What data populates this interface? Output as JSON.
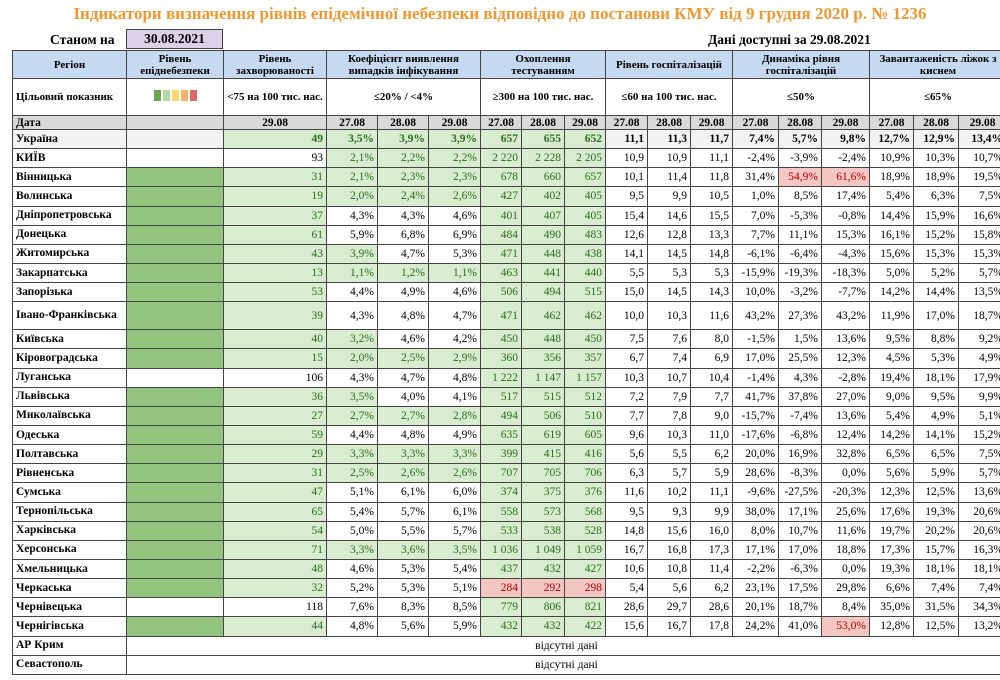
{
  "title": "Індикатори визначення рівнів епідемічної небезпеки відповідно до постанови КМУ від 9 грудня 2020 р. № 1236",
  "as_of_label": "Станом на",
  "as_of_date": "30.08.2021",
  "data_note": "Дані доступні за  29.08.2021",
  "headers": {
    "region": "Регіон",
    "risk_level": "Рівень епіднебезпеки",
    "incidence": "Рівень захворюваності",
    "detection": "Коефіцієнт виявлення випадків інфікування",
    "testing": "Охоплення тестуванням",
    "hosp": "Рівень госпіталізацій",
    "hosp_dyn": "Динаміка рівня госпіталізацій",
    "beds": "Завантаженість ліжок з киснем"
  },
  "targets": {
    "label": "Цільовий показник",
    "incidence": "<75 на 100 тис. нас.",
    "detection": "≤20% / <4%",
    "testing": "≥300 на 100 тис. нас.",
    "hosp": "≤60 на 100 тис. нас.",
    "hosp_dyn": "≤50%",
    "beds": "≤65%"
  },
  "legend_colors": [
    "#6aa84f",
    "#b6d7a8",
    "#ffd966",
    "#f6b26b",
    "#e06666"
  ],
  "date_row": {
    "label": "Дата",
    "incidence": "29.08",
    "d1": "27.08",
    "d2": "28.08",
    "d3": "29.08"
  },
  "colors": {
    "header_bg": "#c5d9f1",
    "indicator_green": "#93c47d",
    "good_bg": "#d8ecd0",
    "bad_bg": "#f4c7c3",
    "title_color": "#f0982e"
  },
  "rows": [
    {
      "name": "Україна",
      "ua": true,
      "ind": false,
      "inc": "49",
      "ci": "g",
      "det": [
        "3,5%",
        "3,9%",
        "3,9%"
      ],
      "dc": [
        "g",
        "g",
        "g"
      ],
      "test": [
        "657",
        "655",
        "652"
      ],
      "tc": [
        "g",
        "g",
        "g"
      ],
      "hosp": [
        "11,1",
        "11,3",
        "11,7"
      ],
      "dyn": [
        "7,4%",
        "5,7%",
        "9,8%"
      ],
      "yc": [
        "",
        "",
        ""
      ],
      "beds": [
        "12,7%",
        "12,9%",
        "13,4%"
      ]
    },
    {
      "name": "КИЇВ",
      "ind": false,
      "inc": "93",
      "ci": "",
      "det": [
        "2,1%",
        "2,2%",
        "2,2%"
      ],
      "dc": [
        "g",
        "g",
        "g"
      ],
      "test": [
        "2 220",
        "2 228",
        "2 205"
      ],
      "tc": [
        "g",
        "g",
        "g"
      ],
      "hosp": [
        "10,9",
        "10,9",
        "11,1"
      ],
      "dyn": [
        "-2,4%",
        "-3,9%",
        "-2,4%"
      ],
      "yc": [
        "",
        "",
        ""
      ],
      "beds": [
        "10,9%",
        "10,3%",
        "10,7%"
      ]
    },
    {
      "name": "Вінницька",
      "ind": true,
      "inc": "31",
      "ci": "g",
      "det": [
        "2,1%",
        "2,3%",
        "2,3%"
      ],
      "dc": [
        "g",
        "g",
        "g"
      ],
      "test": [
        "678",
        "660",
        "657"
      ],
      "tc": [
        "g",
        "g",
        "g"
      ],
      "hosp": [
        "10,1",
        "11,4",
        "11,8"
      ],
      "dyn": [
        "31,4%",
        "54,9%",
        "61,6%"
      ],
      "yc": [
        "",
        "p",
        "p"
      ],
      "beds": [
        "18,9%",
        "18,9%",
        "19,5%"
      ]
    },
    {
      "name": "Волинська",
      "ind": true,
      "inc": "19",
      "ci": "g",
      "det": [
        "2,0%",
        "2,4%",
        "2,6%"
      ],
      "dc": [
        "g",
        "g",
        "g"
      ],
      "test": [
        "427",
        "402",
        "405"
      ],
      "tc": [
        "g",
        "g",
        "g"
      ],
      "hosp": [
        "9,5",
        "9,9",
        "10,5"
      ],
      "dyn": [
        "1,0%",
        "8,5%",
        "17,4%"
      ],
      "yc": [
        "",
        "",
        ""
      ],
      "beds": [
        "5,4%",
        "6,3%",
        "7,5%"
      ]
    },
    {
      "name": "Дніпропетровська",
      "ind": true,
      "inc": "37",
      "ci": "g",
      "det": [
        "4,3%",
        "4,3%",
        "4,6%"
      ],
      "dc": [
        "",
        "",
        ""
      ],
      "test": [
        "401",
        "407",
        "405"
      ],
      "tc": [
        "g",
        "g",
        "g"
      ],
      "hosp": [
        "15,4",
        "14,6",
        "15,5"
      ],
      "dyn": [
        "7,0%",
        "-5,3%",
        "-0,8%"
      ],
      "yc": [
        "",
        "",
        ""
      ],
      "beds": [
        "14,4%",
        "15,9%",
        "16,6%"
      ]
    },
    {
      "name": "Донецька",
      "ind": true,
      "inc": "61",
      "ci": "g",
      "det": [
        "5,9%",
        "6,8%",
        "6,9%"
      ],
      "dc": [
        "",
        "",
        ""
      ],
      "test": [
        "484",
        "490",
        "483"
      ],
      "tc": [
        "g",
        "g",
        "g"
      ],
      "hosp": [
        "12,6",
        "12,8",
        "13,3"
      ],
      "dyn": [
        "7,7%",
        "11,1%",
        "15,3%"
      ],
      "yc": [
        "",
        "",
        ""
      ],
      "beds": [
        "16,1%",
        "15,2%",
        "15,8%"
      ]
    },
    {
      "name": "Житомирська",
      "ind": true,
      "inc": "43",
      "ci": "g",
      "det": [
        "3,9%",
        "4,7%",
        "5,3%"
      ],
      "dc": [
        "g",
        "",
        ""
      ],
      "test": [
        "471",
        "448",
        "438"
      ],
      "tc": [
        "g",
        "g",
        "g"
      ],
      "hosp": [
        "14,1",
        "14,5",
        "14,8"
      ],
      "dyn": [
        "-6,1%",
        "-6,4%",
        "-4,3%"
      ],
      "yc": [
        "",
        "",
        ""
      ],
      "beds": [
        "15,6%",
        "15,3%",
        "15,3%"
      ]
    },
    {
      "name": "Закарпатська",
      "ind": true,
      "inc": "13",
      "ci": "g",
      "det": [
        "1,1%",
        "1,2%",
        "1,1%"
      ],
      "dc": [
        "g",
        "g",
        "g"
      ],
      "test": [
        "463",
        "441",
        "440"
      ],
      "tc": [
        "g",
        "g",
        "g"
      ],
      "hosp": [
        "5,5",
        "5,3",
        "5,3"
      ],
      "dyn": [
        "-15,9%",
        "-19,3%",
        "-18,3%"
      ],
      "yc": [
        "",
        "",
        ""
      ],
      "beds": [
        "5,0%",
        "5,2%",
        "5,7%"
      ]
    },
    {
      "name": "Запорізька",
      "ind": true,
      "inc": "53",
      "ci": "g",
      "det": [
        "4,4%",
        "4,9%",
        "4,6%"
      ],
      "dc": [
        "",
        "",
        ""
      ],
      "test": [
        "506",
        "494",
        "515"
      ],
      "tc": [
        "g",
        "g",
        "g"
      ],
      "hosp": [
        "15,0",
        "14,5",
        "14,3"
      ],
      "dyn": [
        "10,0%",
        "-3,2%",
        "-7,7%"
      ],
      "yc": [
        "",
        "",
        ""
      ],
      "beds": [
        "14,2%",
        "14,4%",
        "13,5%"
      ]
    },
    {
      "name": "Івано-Франківська",
      "ml": true,
      "ind": true,
      "inc": "39",
      "ci": "g",
      "det": [
        "4,3%",
        "4,8%",
        "4,7%"
      ],
      "dc": [
        "",
        "",
        ""
      ],
      "test": [
        "471",
        "462",
        "462"
      ],
      "tc": [
        "g",
        "g",
        "g"
      ],
      "hosp": [
        "10,0",
        "10,3",
        "11,6"
      ],
      "dyn": [
        "43,2%",
        "27,3%",
        "43,2%"
      ],
      "yc": [
        "",
        "",
        ""
      ],
      "beds": [
        "11,9%",
        "17,0%",
        "18,7%"
      ]
    },
    {
      "name": "Київська",
      "ind": true,
      "inc": "40",
      "ci": "g",
      "det": [
        "3,2%",
        "4,6%",
        "4,2%"
      ],
      "dc": [
        "g",
        "",
        ""
      ],
      "test": [
        "450",
        "448",
        "450"
      ],
      "tc": [
        "g",
        "g",
        "g"
      ],
      "hosp": [
        "7,5",
        "7,6",
        "8,0"
      ],
      "dyn": [
        "-1,5%",
        "1,5%",
        "13,6%"
      ],
      "yc": [
        "",
        "",
        ""
      ],
      "beds": [
        "9,5%",
        "8,8%",
        "9,2%"
      ]
    },
    {
      "name": "Кіровоградська",
      "ind": true,
      "inc": "15",
      "ci": "g",
      "det": [
        "2,0%",
        "2,5%",
        "2,9%"
      ],
      "dc": [
        "g",
        "g",
        "g"
      ],
      "test": [
        "360",
        "356",
        "357"
      ],
      "tc": [
        "g",
        "g",
        "g"
      ],
      "hosp": [
        "6,7",
        "7,4",
        "6,9"
      ],
      "dyn": [
        "17,0%",
        "25,5%",
        "12,3%"
      ],
      "yc": [
        "",
        "",
        ""
      ],
      "beds": [
        "4,5%",
        "5,3%",
        "4,9%"
      ]
    },
    {
      "name": "Луганська",
      "ind": false,
      "inc": "106",
      "ci": "",
      "det": [
        "4,3%",
        "4,7%",
        "4,8%"
      ],
      "dc": [
        "",
        "",
        ""
      ],
      "test": [
        "1 222",
        "1 147",
        "1 157"
      ],
      "tc": [
        "g",
        "g",
        "g"
      ],
      "hosp": [
        "10,3",
        "10,7",
        "10,4"
      ],
      "dyn": [
        "-1,4%",
        "4,3%",
        "-2,8%"
      ],
      "yc": [
        "",
        "",
        ""
      ],
      "beds": [
        "19,4%",
        "18,1%",
        "17,9%"
      ]
    },
    {
      "name": "Львівська",
      "ind": true,
      "inc": "36",
      "ci": "g",
      "det": [
        "3,5%",
        "4,0%",
        "4,1%"
      ],
      "dc": [
        "g",
        "",
        ""
      ],
      "test": [
        "517",
        "515",
        "512"
      ],
      "tc": [
        "g",
        "g",
        "g"
      ],
      "hosp": [
        "7,2",
        "7,9",
        "7,7"
      ],
      "dyn": [
        "41,7%",
        "37,8%",
        "27,0%"
      ],
      "yc": [
        "",
        "",
        ""
      ],
      "beds": [
        "9,0%",
        "9,5%",
        "9,9%"
      ]
    },
    {
      "name": "Миколаївська",
      "ind": true,
      "inc": "27",
      "ci": "g",
      "det": [
        "2,7%",
        "2,7%",
        "2,8%"
      ],
      "dc": [
        "g",
        "g",
        "g"
      ],
      "test": [
        "494",
        "506",
        "510"
      ],
      "tc": [
        "g",
        "g",
        "g"
      ],
      "hosp": [
        "7,7",
        "7,8",
        "9,0"
      ],
      "dyn": [
        "-15,7%",
        "-7,4%",
        "13,6%"
      ],
      "yc": [
        "",
        "",
        ""
      ],
      "beds": [
        "5,4%",
        "4,9%",
        "5,1%"
      ]
    },
    {
      "name": "Одеська",
      "ind": true,
      "inc": "59",
      "ci": "g",
      "det": [
        "4,4%",
        "4,8%",
        "4,9%"
      ],
      "dc": [
        "",
        "",
        ""
      ],
      "test": [
        "635",
        "619",
        "605"
      ],
      "tc": [
        "g",
        "g",
        "g"
      ],
      "hosp": [
        "9,6",
        "10,3",
        "11,0"
      ],
      "dyn": [
        "-17,6%",
        "-6,8%",
        "12,4%"
      ],
      "yc": [
        "",
        "",
        ""
      ],
      "beds": [
        "14,2%",
        "14,1%",
        "15,2%"
      ]
    },
    {
      "name": "Полтавська",
      "ind": true,
      "inc": "29",
      "ci": "g",
      "det": [
        "3,3%",
        "3,3%",
        "3,3%"
      ],
      "dc": [
        "g",
        "g",
        "g"
      ],
      "test": [
        "399",
        "415",
        "416"
      ],
      "tc": [
        "g",
        "g",
        "g"
      ],
      "hosp": [
        "5,6",
        "5,5",
        "6,2"
      ],
      "dyn": [
        "20,0%",
        "16,9%",
        "32,8%"
      ],
      "yc": [
        "",
        "",
        ""
      ],
      "beds": [
        "6,5%",
        "6,5%",
        "7,5%"
      ]
    },
    {
      "name": "Рівненська",
      "ind": true,
      "inc": "31",
      "ci": "g",
      "det": [
        "2,5%",
        "2,6%",
        "2,6%"
      ],
      "dc": [
        "g",
        "g",
        "g"
      ],
      "test": [
        "707",
        "705",
        "706"
      ],
      "tc": [
        "g",
        "g",
        "g"
      ],
      "hosp": [
        "6,3",
        "5,7",
        "5,9"
      ],
      "dyn": [
        "28,6%",
        "-8,3%",
        "0,0%"
      ],
      "yc": [
        "",
        "",
        ""
      ],
      "beds": [
        "5,6%",
        "5,9%",
        "5,7%"
      ]
    },
    {
      "name": "Сумська",
      "ind": true,
      "inc": "47",
      "ci": "g",
      "det": [
        "5,1%",
        "6,1%",
        "6,0%"
      ],
      "dc": [
        "",
        "",
        ""
      ],
      "test": [
        "374",
        "375",
        "376"
      ],
      "tc": [
        "g",
        "g",
        "g"
      ],
      "hosp": [
        "11,6",
        "10,2",
        "11,1"
      ],
      "dyn": [
        "-9,6%",
        "-27,5%",
        "-20,3%"
      ],
      "yc": [
        "",
        "",
        ""
      ],
      "beds": [
        "12,3%",
        "12,5%",
        "13,6%"
      ]
    },
    {
      "name": "Тернопільська",
      "ind": true,
      "inc": "65",
      "ci": "g",
      "det": [
        "5,4%",
        "5,7%",
        "6,1%"
      ],
      "dc": [
        "",
        "",
        ""
      ],
      "test": [
        "558",
        "573",
        "568"
      ],
      "tc": [
        "g",
        "g",
        "g"
      ],
      "hosp": [
        "9,5",
        "9,3",
        "9,9"
      ],
      "dyn": [
        "38,0%",
        "17,1%",
        "25,6%"
      ],
      "yc": [
        "",
        "",
        ""
      ],
      "beds": [
        "17,6%",
        "19,3%",
        "20,6%"
      ]
    },
    {
      "name": "Харківська",
      "ind": true,
      "inc": "54",
      "ci": "g",
      "det": [
        "5,0%",
        "5,5%",
        "5,7%"
      ],
      "dc": [
        "",
        "",
        ""
      ],
      "test": [
        "533",
        "538",
        "528"
      ],
      "tc": [
        "g",
        "g",
        "g"
      ],
      "hosp": [
        "14,8",
        "15,6",
        "16,0"
      ],
      "dyn": [
        "8,0%",
        "10,7%",
        "11,6%"
      ],
      "yc": [
        "",
        "",
        ""
      ],
      "beds": [
        "19,7%",
        "20,2%",
        "20,6%"
      ]
    },
    {
      "name": "Херсонська",
      "ind": true,
      "inc": "71",
      "ci": "g",
      "det": [
        "3,3%",
        "3,6%",
        "3,5%"
      ],
      "dc": [
        "g",
        "g",
        "g"
      ],
      "test": [
        "1 036",
        "1 049",
        "1 059"
      ],
      "tc": [
        "g",
        "g",
        "g"
      ],
      "hosp": [
        "16,7",
        "16,8",
        "17,3"
      ],
      "dyn": [
        "17,1%",
        "17,0%",
        "18,8%"
      ],
      "yc": [
        "",
        "",
        ""
      ],
      "beds": [
        "17,3%",
        "15,7%",
        "16,3%"
      ]
    },
    {
      "name": "Хмельницька",
      "ind": true,
      "inc": "48",
      "ci": "g",
      "det": [
        "4,6%",
        "5,3%",
        "5,4%"
      ],
      "dc": [
        "",
        "",
        ""
      ],
      "test": [
        "437",
        "432",
        "427"
      ],
      "tc": [
        "g",
        "g",
        "g"
      ],
      "hosp": [
        "10,6",
        "10,8",
        "11,4"
      ],
      "dyn": [
        "-2,2%",
        "-6,3%",
        "0,0%"
      ],
      "yc": [
        "",
        "",
        ""
      ],
      "beds": [
        "19,3%",
        "18,1%",
        "18,1%"
      ]
    },
    {
      "name": "Черкаська",
      "ind": true,
      "inc": "32",
      "ci": "g",
      "det": [
        "5,2%",
        "5,3%",
        "5,1%"
      ],
      "dc": [
        "",
        "",
        ""
      ],
      "test": [
        "284",
        "292",
        "298"
      ],
      "tc": [
        "p",
        "p",
        "p"
      ],
      "hosp": [
        "5,4",
        "5,6",
        "6,2"
      ],
      "dyn": [
        "23,1%",
        "17,5%",
        "29,8%"
      ],
      "yc": [
        "",
        "",
        ""
      ],
      "beds": [
        "6,6%",
        "7,4%",
        "7,4%"
      ]
    },
    {
      "name": "Чернівецька",
      "ind": false,
      "inc": "118",
      "ci": "",
      "det": [
        "7,6%",
        "8,3%",
        "8,5%"
      ],
      "dc": [
        "",
        "",
        ""
      ],
      "test": [
        "779",
        "806",
        "821"
      ],
      "tc": [
        "g",
        "g",
        "g"
      ],
      "hosp": [
        "28,6",
        "29,7",
        "28,6"
      ],
      "dyn": [
        "20,1%",
        "18,7%",
        "8,4%"
      ],
      "yc": [
        "",
        "",
        ""
      ],
      "beds": [
        "35,0%",
        "31,5%",
        "34,3%"
      ]
    },
    {
      "name": "Чернігівська",
      "ind": true,
      "inc": "44",
      "ci": "g",
      "det": [
        "4,8%",
        "5,6%",
        "5,9%"
      ],
      "dc": [
        "",
        "",
        ""
      ],
      "test": [
        "432",
        "432",
        "422"
      ],
      "tc": [
        "g",
        "g",
        "g"
      ],
      "hosp": [
        "15,6",
        "16,7",
        "17,8"
      ],
      "dyn": [
        "24,2%",
        "41,0%",
        "53,0%"
      ],
      "yc": [
        "",
        "",
        "p"
      ],
      "beds": [
        "12,8%",
        "12,5%",
        "13,2%"
      ]
    }
  ],
  "na_rows": [
    {
      "name": "АР Крим",
      "text": "відсутні дані"
    },
    {
      "name": "Севастополь",
      "text": "відсутні дані"
    }
  ]
}
